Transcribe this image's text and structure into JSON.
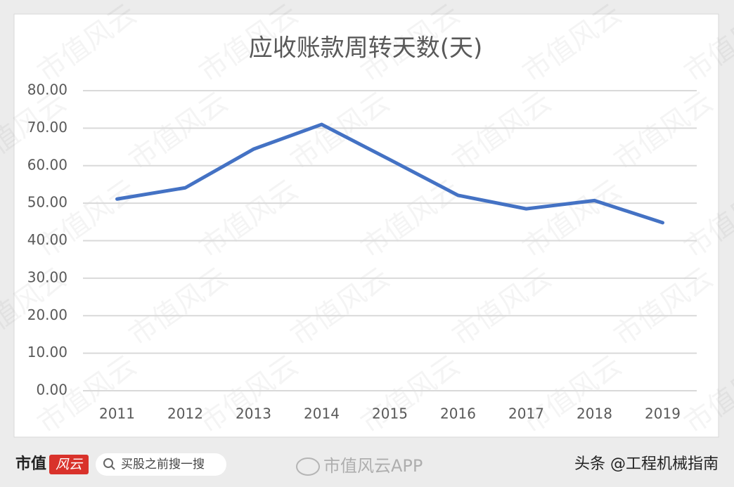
{
  "chart_data": {
    "type": "line",
    "title": "应收账款周转天数(天)",
    "categories": [
      "2011",
      "2012",
      "2013",
      "2014",
      "2015",
      "2016",
      "2017",
      "2018",
      "2019"
    ],
    "series": [
      {
        "name": "应收账款周转天数",
        "color": "#4472c4",
        "values": [
          51.1,
          54.1,
          64.4,
          71.0,
          61.6,
          52.1,
          48.5,
          50.7,
          44.8
        ]
      }
    ],
    "ylim": [
      0,
      80
    ],
    "yticks": [
      {
        "value": 0,
        "label": "0.00"
      },
      {
        "value": 10,
        "label": "10.00"
      },
      {
        "value": 20,
        "label": "20.00"
      },
      {
        "value": 30,
        "label": "30.00"
      },
      {
        "value": 40,
        "label": "40.00"
      },
      {
        "value": 50,
        "label": "50.00"
      },
      {
        "value": 60,
        "label": "60.00"
      },
      {
        "value": 70,
        "label": "70.00"
      },
      {
        "value": 80,
        "label": "80.00"
      }
    ],
    "grid": true
  },
  "watermark": "市值风云",
  "footer": {
    "brand": "市值",
    "brand_logo": "风云",
    "search": "买股之前搜一搜",
    "weibo": "市值风云APP",
    "source": "头条 @工程机械指南"
  }
}
